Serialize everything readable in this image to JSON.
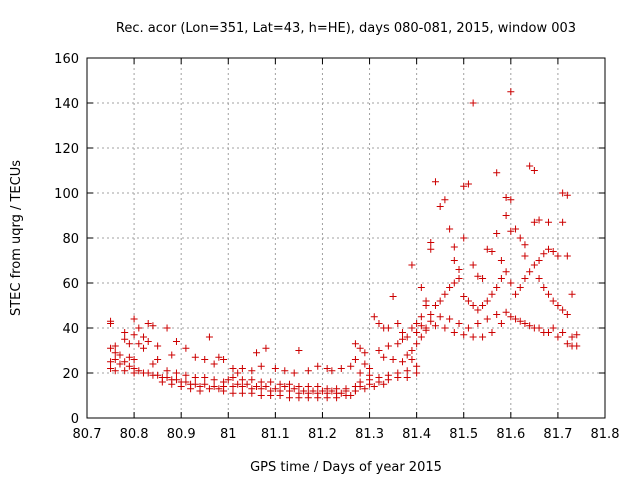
{
  "chart_data": {
    "type": "scatter",
    "title": "Rec. acor (Lon=351, Lat=43, h=HE), days 080-081, 2015, window 003",
    "xlabel": "GPS time / Days of year 2015",
    "ylabel": "STEC from uqrg / TECUs",
    "xlim": [
      80.7,
      81.8
    ],
    "ylim": [
      0,
      160
    ],
    "x_ticks": [
      80.7,
      80.8,
      80.9,
      81,
      81.1,
      81.2,
      81.3,
      81.4,
      81.5,
      81.6,
      81.7,
      81.8
    ],
    "x_tick_labels": [
      "80.7",
      "80.8",
      "80.9",
      "81",
      "81.1",
      "81.2",
      "81.3",
      "81.4",
      "81.5",
      "81.6",
      "81.7",
      "81.8"
    ],
    "y_ticks": [
      0,
      20,
      40,
      60,
      80,
      100,
      120,
      140,
      160
    ],
    "y_tick_labels": [
      "0",
      "20",
      "40",
      "60",
      "80",
      "100",
      "120",
      "140",
      "160"
    ],
    "grid": true,
    "legend": "none",
    "marker": "plus",
    "color": "#cc0000",
    "series": [
      {
        "points": [
          [
            80.75,
            43
          ],
          [
            80.75,
            42
          ],
          [
            80.78,
            38
          ],
          [
            80.8,
            44
          ],
          [
            80.81,
            40
          ],
          [
            80.83,
            42
          ],
          [
            80.84,
            41
          ],
          [
            80.87,
            40
          ],
          [
            80.96,
            36
          ],
          [
            80.8,
            37
          ],
          [
            80.82,
            36
          ],
          [
            80.78,
            35
          ],
          [
            80.76,
            32
          ],
          [
            80.79,
            33
          ],
          [
            80.81,
            33
          ],
          [
            80.83,
            34
          ],
          [
            80.85,
            32
          ],
          [
            80.82,
            31
          ],
          [
            80.89,
            34
          ],
          [
            80.91,
            31
          ],
          [
            80.88,
            28
          ],
          [
            80.93,
            27
          ],
          [
            80.95,
            26
          ],
          [
            80.98,
            27
          ],
          [
            80.99,
            26
          ],
          [
            80.97,
            24
          ],
          [
            80.85,
            26
          ],
          [
            80.84,
            24
          ],
          [
            80.75,
            31
          ],
          [
            80.76,
            29
          ],
          [
            80.77,
            28
          ],
          [
            80.79,
            27
          ],
          [
            80.8,
            26
          ],
          [
            80.78,
            25
          ],
          [
            80.76,
            26
          ],
          [
            80.75,
            25
          ],
          [
            80.77,
            24
          ],
          [
            80.79,
            23
          ],
          [
            80.8,
            22
          ],
          [
            80.81,
            21
          ],
          [
            80.83,
            20
          ],
          [
            80.85,
            19
          ],
          [
            80.87,
            18
          ],
          [
            80.89,
            17
          ],
          [
            80.91,
            16
          ],
          [
            80.93,
            15
          ],
          [
            80.95,
            15
          ],
          [
            80.97,
            14
          ],
          [
            80.99,
            14
          ],
          [
            80.75,
            22
          ],
          [
            80.76,
            21
          ],
          [
            80.78,
            21
          ],
          [
            80.8,
            20
          ],
          [
            80.82,
            20
          ],
          [
            80.84,
            19
          ],
          [
            80.86,
            18
          ],
          [
            80.88,
            17
          ],
          [
            80.9,
            16
          ],
          [
            80.92,
            15
          ],
          [
            80.94,
            14
          ],
          [
            80.96,
            13
          ],
          [
            80.98,
            13
          ],
          [
            80.99,
            12
          ],
          [
            80.87,
            21
          ],
          [
            80.89,
            20
          ],
          [
            80.91,
            19
          ],
          [
            80.93,
            18
          ],
          [
            80.95,
            18
          ],
          [
            80.97,
            17
          ],
          [
            80.99,
            16
          ],
          [
            80.86,
            16
          ],
          [
            80.88,
            15
          ],
          [
            80.9,
            14
          ],
          [
            80.92,
            13
          ],
          [
            80.94,
            12
          ],
          [
            81.01,
            22
          ],
          [
            81.02,
            20
          ],
          [
            81.03,
            22
          ],
          [
            81.05,
            21
          ],
          [
            81.06,
            29
          ],
          [
            81.08,
            31
          ],
          [
            81.07,
            23
          ],
          [
            81.1,
            22
          ],
          [
            81.12,
            21
          ],
          [
            81.14,
            20
          ],
          [
            81.15,
            30
          ],
          [
            81.17,
            21
          ],
          [
            81.19,
            23
          ],
          [
            81.21,
            22
          ],
          [
            81.22,
            21
          ],
          [
            81.24,
            22
          ],
          [
            81.26,
            23
          ],
          [
            81.01,
            18
          ],
          [
            81.03,
            17
          ],
          [
            81.05,
            17
          ],
          [
            81.07,
            16
          ],
          [
            81.09,
            16
          ],
          [
            81.11,
            15
          ],
          [
            81.13,
            15
          ],
          [
            81.15,
            14
          ],
          [
            81.17,
            14
          ],
          [
            81.19,
            14
          ],
          [
            81.21,
            13
          ],
          [
            81.23,
            13
          ],
          [
            81.25,
            13
          ],
          [
            81.27,
            14
          ],
          [
            81.01,
            14
          ],
          [
            81.03,
            14
          ],
          [
            81.05,
            13
          ],
          [
            81.07,
            13
          ],
          [
            81.09,
            12
          ],
          [
            81.11,
            12
          ],
          [
            81.13,
            12
          ],
          [
            81.15,
            11
          ],
          [
            81.17,
            11
          ],
          [
            81.19,
            11
          ],
          [
            81.21,
            11
          ],
          [
            81.23,
            11
          ],
          [
            81.25,
            12
          ],
          [
            81.27,
            12
          ],
          [
            81.01,
            11
          ],
          [
            81.03,
            11
          ],
          [
            81.05,
            11
          ],
          [
            81.07,
            10
          ],
          [
            81.09,
            10
          ],
          [
            81.11,
            10
          ],
          [
            81.13,
            9
          ],
          [
            81.15,
            9
          ],
          [
            81.17,
            9
          ],
          [
            81.19,
            9
          ],
          [
            81.21,
            9
          ],
          [
            81.23,
            9
          ],
          [
            81.25,
            10
          ],
          [
            81.26,
            10
          ],
          [
            81.0,
            17
          ],
          [
            81.02,
            15
          ],
          [
            81.04,
            15
          ],
          [
            81.06,
            14
          ],
          [
            81.08,
            14
          ],
          [
            81.1,
            13
          ],
          [
            81.12,
            14
          ],
          [
            81.14,
            13
          ],
          [
            81.16,
            12
          ],
          [
            81.18,
            12
          ],
          [
            81.2,
            12
          ],
          [
            81.22,
            12
          ],
          [
            81.24,
            11
          ],
          [
            81.27,
            33
          ],
          [
            81.28,
            31
          ],
          [
            81.29,
            29
          ],
          [
            81.27,
            26
          ],
          [
            81.29,
            24
          ],
          [
            81.3,
            22
          ],
          [
            81.28,
            20
          ],
          [
            81.3,
            19
          ],
          [
            81.31,
            45
          ],
          [
            81.32,
            42
          ],
          [
            81.33,
            40
          ],
          [
            81.34,
            40
          ],
          [
            81.35,
            54
          ],
          [
            81.36,
            42
          ],
          [
            81.37,
            38
          ],
          [
            81.38,
            36
          ],
          [
            81.36,
            33
          ],
          [
            81.34,
            32
          ],
          [
            81.32,
            30
          ],
          [
            81.33,
            27
          ],
          [
            81.35,
            26
          ],
          [
            81.37,
            25
          ],
          [
            81.39,
            26
          ],
          [
            81.28,
            16
          ],
          [
            81.3,
            17
          ],
          [
            81.32,
            18
          ],
          [
            81.34,
            19
          ],
          [
            81.36,
            20
          ],
          [
            81.38,
            21
          ],
          [
            81.4,
            23
          ],
          [
            81.28,
            14
          ],
          [
            81.3,
            15
          ],
          [
            81.32,
            16
          ],
          [
            81.34,
            17
          ],
          [
            81.36,
            18
          ],
          [
            81.38,
            18
          ],
          [
            81.4,
            20
          ],
          [
            81.27,
            12
          ],
          [
            81.29,
            13
          ],
          [
            81.31,
            14
          ],
          [
            81.33,
            15
          ],
          [
            81.39,
            68
          ],
          [
            81.41,
            58
          ],
          [
            81.42,
            52
          ],
          [
            81.42,
            50
          ],
          [
            81.43,
            78
          ],
          [
            81.43,
            75
          ],
          [
            81.44,
            105
          ],
          [
            81.45,
            94
          ],
          [
            81.46,
            97
          ],
          [
            81.47,
            84
          ],
          [
            81.48,
            76
          ],
          [
            81.48,
            70
          ],
          [
            81.49,
            66
          ],
          [
            81.5,
            103
          ],
          [
            81.5,
            80
          ],
          [
            81.51,
            104
          ],
          [
            81.52,
            140
          ],
          [
            81.52,
            68
          ],
          [
            81.53,
            63
          ],
          [
            81.54,
            62
          ],
          [
            81.55,
            75
          ],
          [
            81.56,
            74
          ],
          [
            81.57,
            109
          ],
          [
            81.57,
            82
          ],
          [
            81.58,
            70
          ],
          [
            81.59,
            98
          ],
          [
            81.59,
            90
          ],
          [
            81.6,
            145
          ],
          [
            81.6,
            97
          ],
          [
            81.6,
            83
          ],
          [
            81.61,
            84
          ],
          [
            81.62,
            80
          ],
          [
            81.63,
            77
          ],
          [
            81.63,
            72
          ],
          [
            81.64,
            112
          ],
          [
            81.65,
            110
          ],
          [
            81.65,
            87
          ],
          [
            81.66,
            88
          ],
          [
            81.66,
            70
          ],
          [
            81.67,
            73
          ],
          [
            81.68,
            87
          ],
          [
            81.68,
            75
          ],
          [
            81.69,
            74
          ],
          [
            81.7,
            72
          ],
          [
            81.71,
            100
          ],
          [
            81.71,
            87
          ],
          [
            81.72,
            99
          ],
          [
            81.72,
            72
          ],
          [
            81.4,
            42
          ],
          [
            81.41,
            45
          ],
          [
            81.42,
            40
          ],
          [
            81.43,
            46
          ],
          [
            81.44,
            50
          ],
          [
            81.45,
            52
          ],
          [
            81.46,
            55
          ],
          [
            81.47,
            58
          ],
          [
            81.48,
            60
          ],
          [
            81.49,
            62
          ],
          [
            81.5,
            54
          ],
          [
            81.51,
            52
          ],
          [
            81.52,
            50
          ],
          [
            81.53,
            48
          ],
          [
            81.54,
            50
          ],
          [
            81.55,
            52
          ],
          [
            81.56,
            55
          ],
          [
            81.57,
            58
          ],
          [
            81.58,
            62
          ],
          [
            81.59,
            65
          ],
          [
            81.6,
            60
          ],
          [
            81.61,
            55
          ],
          [
            81.62,
            58
          ],
          [
            81.63,
            62
          ],
          [
            81.64,
            65
          ],
          [
            81.65,
            68
          ],
          [
            81.66,
            62
          ],
          [
            81.67,
            58
          ],
          [
            81.68,
            55
          ],
          [
            81.69,
            52
          ],
          [
            81.7,
            50
          ],
          [
            81.71,
            48
          ],
          [
            81.72,
            46
          ],
          [
            81.73,
            55
          ],
          [
            81.4,
            38
          ],
          [
            81.42,
            39
          ],
          [
            81.44,
            41
          ],
          [
            81.46,
            40
          ],
          [
            81.48,
            38
          ],
          [
            81.5,
            37
          ],
          [
            81.52,
            36
          ],
          [
            81.54,
            36
          ],
          [
            81.56,
            38
          ],
          [
            81.58,
            42
          ],
          [
            81.6,
            45
          ],
          [
            81.62,
            43
          ],
          [
            81.64,
            41
          ],
          [
            81.66,
            40
          ],
          [
            81.68,
            38
          ],
          [
            81.7,
            36
          ],
          [
            81.72,
            33
          ],
          [
            81.73,
            32
          ],
          [
            81.74,
            32
          ],
          [
            81.41,
            41
          ],
          [
            81.43,
            43
          ],
          [
            81.45,
            45
          ],
          [
            81.47,
            44
          ],
          [
            81.49,
            42
          ],
          [
            81.51,
            40
          ],
          [
            81.53,
            42
          ],
          [
            81.55,
            44
          ],
          [
            81.57,
            46
          ],
          [
            81.59,
            47
          ],
          [
            81.61,
            44
          ],
          [
            81.63,
            42
          ],
          [
            81.65,
            40
          ],
          [
            81.67,
            38
          ],
          [
            81.69,
            40
          ],
          [
            81.71,
            38
          ],
          [
            81.73,
            36
          ],
          [
            81.74,
            37
          ],
          [
            81.39,
            30
          ],
          [
            81.4,
            33
          ],
          [
            81.38,
            28
          ],
          [
            81.37,
            35
          ],
          [
            81.41,
            36
          ],
          [
            81.39,
            40
          ]
        ]
      }
    ]
  }
}
